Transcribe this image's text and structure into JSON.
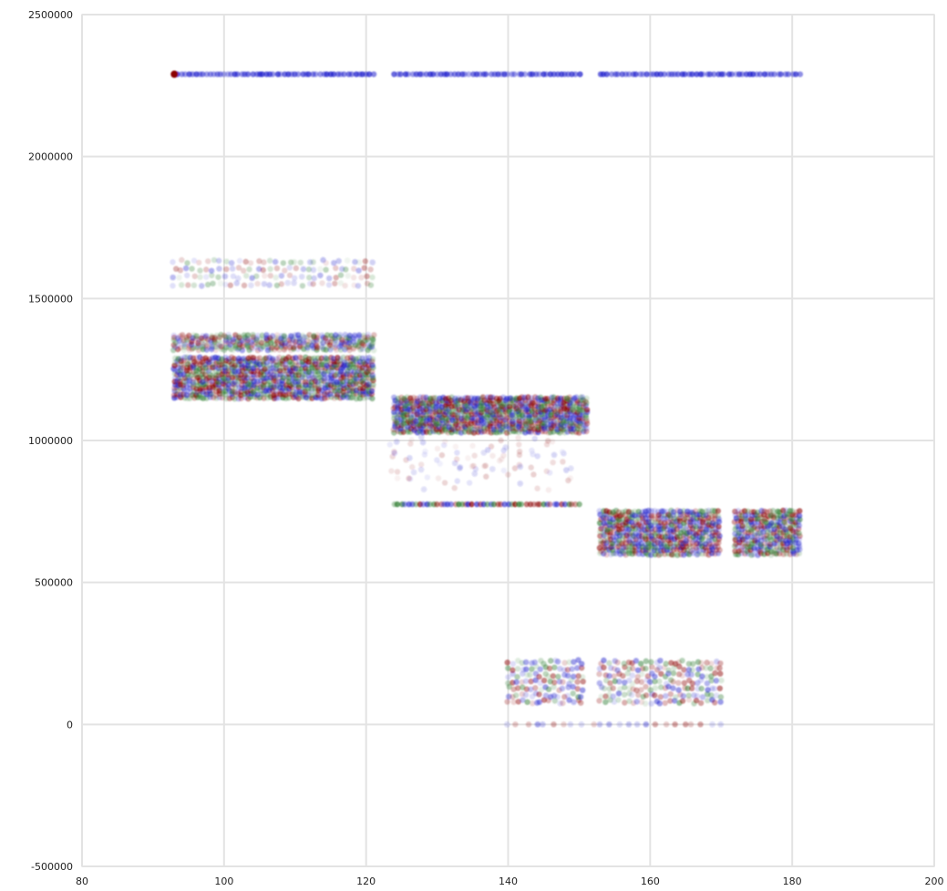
{
  "chart_data": {
    "type": "scatter",
    "title": "",
    "xlabel": "",
    "ylabel": "",
    "xlim": [
      80,
      200
    ],
    "ylim": [
      -500000,
      2500000
    ],
    "x_ticks": [
      80,
      100,
      120,
      140,
      160,
      180,
      200
    ],
    "y_ticks": [
      -500000,
      0,
      500000,
      1000000,
      1500000,
      2000000,
      2500000
    ],
    "x_tick_labels": [
      "80",
      "100",
      "120",
      "140",
      "160",
      "180",
      "200"
    ],
    "y_tick_labels": [
      "-500000",
      "0",
      "500000",
      "1000000",
      "1500000",
      "2000000",
      "2500000"
    ],
    "grid": true,
    "legend": "none",
    "series_colors": {
      "blue": "#1f1fcc",
      "red": "#8b0000",
      "green": "#2e7d32"
    },
    "clusters": [
      {
        "x_range": [
          93,
          121
        ],
        "y_values": [
          2290000
        ],
        "colors": [
          "blue"
        ],
        "density": "line"
      },
      {
        "x_range": [
          124,
          150
        ],
        "y_values": [
          2290000
        ],
        "colors": [
          "blue"
        ],
        "density": "line"
      },
      {
        "x_range": [
          153,
          181
        ],
        "y_values": [
          2290000
        ],
        "colors": [
          "blue"
        ],
        "density": "line"
      },
      {
        "x_range": [
          93,
          121
        ],
        "y_range": [
          1550000,
          1630000
        ],
        "colors": [
          "blue",
          "red",
          "green"
        ],
        "density": "sparse"
      },
      {
        "x_range": [
          93,
          121
        ],
        "y_range": [
          1320000,
          1370000
        ],
        "colors": [
          "blue",
          "red",
          "green"
        ],
        "density": "medium"
      },
      {
        "x_range": [
          93,
          121
        ],
        "y_range": [
          1150000,
          1290000
        ],
        "colors": [
          "blue",
          "red",
          "green"
        ],
        "density": "dense"
      },
      {
        "x_range": [
          124,
          151
        ],
        "y_range": [
          1030000,
          1150000
        ],
        "colors": [
          "red",
          "blue",
          "green"
        ],
        "density": "dense"
      },
      {
        "x_range": [
          124,
          150
        ],
        "y_range": [
          860000,
          1000000
        ],
        "colors": [
          "blue",
          "red"
        ],
        "density": "very_sparse"
      },
      {
        "x_range": [
          124,
          150
        ],
        "y_range": [
          770000,
          780000
        ],
        "colors": [
          "red",
          "blue",
          "green"
        ],
        "density": "line"
      },
      {
        "x_range": [
          153,
          170
        ],
        "y_range": [
          600000,
          750000
        ],
        "colors": [
          "blue",
          "red",
          "green"
        ],
        "density": "dense"
      },
      {
        "x_range": [
          172,
          181
        ],
        "y_range": [
          600000,
          750000
        ],
        "colors": [
          "red",
          "blue",
          "green"
        ],
        "density": "dense"
      },
      {
        "x_range": [
          140,
          151
        ],
        "y_range": [
          80000,
          220000
        ],
        "colors": [
          "green",
          "red",
          "blue"
        ],
        "density": "medium"
      },
      {
        "x_range": [
          153,
          170
        ],
        "y_range": [
          80000,
          220000
        ],
        "colors": [
          "red",
          "green",
          "blue"
        ],
        "density": "medium"
      },
      {
        "x_range": [
          140,
          170
        ],
        "y_values": [
          0
        ],
        "colors": [
          "blue",
          "red"
        ],
        "density": "sparse_line"
      }
    ],
    "highlight_points": [
      {
        "x": 93,
        "y": 2290000,
        "color": "red"
      }
    ]
  }
}
